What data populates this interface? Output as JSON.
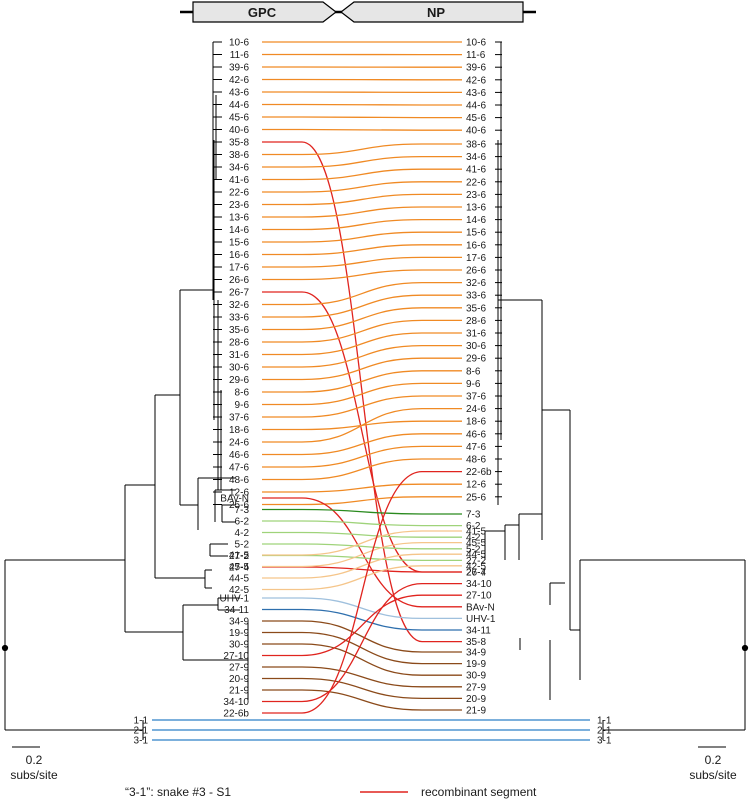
{
  "header": {
    "left_gene": "GPC",
    "right_gene": "NP"
  },
  "scale": {
    "value": "0.2",
    "unit": "subs/site"
  },
  "legend": {
    "sample_note": "“3-1”: snake #3 - S1",
    "recombinant_label": "recombinant segment",
    "recombinant_color": "#e0241f"
  },
  "colors": {
    "s6": "#f08a24",
    "s2": "#9fd37a",
    "s5": "#f5c58a",
    "s9": "#8b4a1a",
    "dkgreen": "#2a8a1e",
    "red": "#e0241f",
    "blue": "#2e6fad",
    "ltblue": "#9fc0dd",
    "sky": "#6aa8da",
    "lblue2": "#2f80c8"
  },
  "left_tree": {
    "leaves": [
      "10-6",
      "11-6",
      "39-6",
      "42-6",
      "43-6",
      "44-6",
      "45-6",
      "40-6",
      "35-8",
      "38-6",
      "34-6",
      "41-6",
      "22-6",
      "23-6",
      "13-6",
      "14-6",
      "15-6",
      "16-6",
      "17-6",
      "26-6",
      "26-7",
      "32-6",
      "33-6",
      "35-6",
      "28-6",
      "31-6",
      "30-6",
      "29-6",
      "8-6",
      "9-6",
      "37-6",
      "18-6",
      "24-6",
      "46-6",
      "47-6",
      "48-6",
      "12-6",
      "25-6",
      "BAv-N",
      "7-3",
      "6-2",
      "4-2",
      "5-2",
      "27-2",
      "27-4",
      "41-5",
      "45-5",
      "44-5",
      "42-5",
      "UHV-1",
      "34-11",
      "34-9",
      "19-9",
      "30-9",
      "27-10",
      "27-9",
      "20-9",
      "21-9",
      "34-10",
      "22-6b",
      "1-1",
      "2-1",
      "3-1"
    ]
  },
  "right_tree": {
    "leaves": [
      "10-6",
      "11-6",
      "39-6",
      "42-6",
      "43-6",
      "44-6",
      "45-6",
      "40-6",
      "38-6",
      "34-6",
      "41-6",
      "22-6",
      "23-6",
      "13-6",
      "14-6",
      "15-6",
      "16-6",
      "17-6",
      "26-6",
      "32-6",
      "33-6",
      "35-6",
      "28-6",
      "31-6",
      "30-6",
      "29-6",
      "8-6",
      "9-6",
      "37-6",
      "24-6",
      "18-6",
      "46-6",
      "47-6",
      "48-6",
      "22-6b",
      "12-6",
      "25-6",
      "7-3",
      "6-2",
      "4-2",
      "5-2",
      "27-2",
      "27-4",
      "41-5",
      "45-5",
      "44-5",
      "42-5",
      "26-7",
      "34-10",
      "27-10",
      "BAv-N",
      "UHV-1",
      "34-11",
      "35-8",
      "34-9",
      "19-9",
      "30-9",
      "27-9",
      "20-9",
      "21-9",
      "1-1",
      "2-1",
      "3-1"
    ]
  }
}
